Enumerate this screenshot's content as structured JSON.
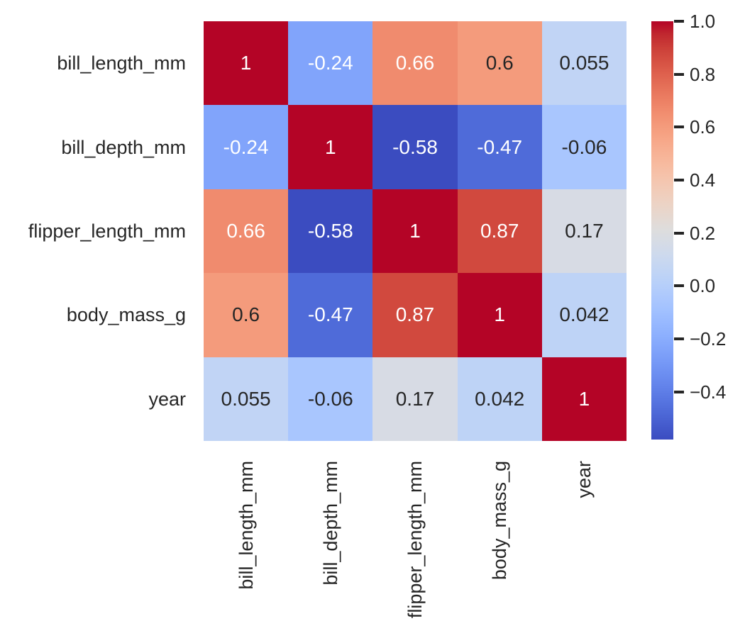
{
  "chart_data": {
    "type": "heatmap",
    "title": "",
    "colormap": "coolwarm",
    "vmin": -0.58,
    "vmax": 1.0,
    "color_min": "#3b4cc0",
    "color_mid": "#dddddd",
    "color_max": "#b40426",
    "annotation_text_light": "#ffffff",
    "annotation_text_dark": "#262626",
    "row_labels": [
      "bill_length_mm",
      "bill_depth_mm",
      "flipper_length_mm",
      "body_mass_g",
      "year"
    ],
    "col_labels": [
      "bill_length_mm",
      "bill_depth_mm",
      "flipper_length_mm",
      "body_mass_g",
      "year"
    ],
    "values": [
      [
        1,
        -0.24,
        0.66,
        0.6,
        0.055
      ],
      [
        -0.24,
        1,
        -0.58,
        -0.47,
        -0.06
      ],
      [
        0.66,
        -0.58,
        1,
        0.87,
        0.17
      ],
      [
        0.6,
        -0.47,
        0.87,
        1,
        0.042
      ],
      [
        0.055,
        -0.06,
        0.17,
        0.042,
        1
      ]
    ],
    "annotations": [
      [
        "1",
        "-0.24",
        "0.66",
        "0.6",
        "0.055"
      ],
      [
        "-0.24",
        "1",
        "-0.58",
        "-0.47",
        "-0.06"
      ],
      [
        "0.66",
        "-0.58",
        "1",
        "0.87",
        "0.17"
      ],
      [
        "0.6",
        "-0.47",
        "0.87",
        "1",
        "0.042"
      ],
      [
        "0.055",
        "-0.06",
        "0.17",
        "0.042",
        "1"
      ]
    ],
    "colorbar": {
      "position": "right",
      "ticks": [
        {
          "label": "1.0",
          "value": 1.0
        },
        {
          "label": "0.8",
          "value": 0.8
        },
        {
          "label": "0.6",
          "value": 0.6
        },
        {
          "label": "0.4",
          "value": 0.4
        },
        {
          "label": "0.2",
          "value": 0.2
        },
        {
          "label": "0.0",
          "value": 0.0
        },
        {
          "label": "−0.2",
          "value": -0.2
        },
        {
          "label": "−0.4",
          "value": -0.4
        }
      ]
    },
    "grid": false,
    "legend": false
  }
}
